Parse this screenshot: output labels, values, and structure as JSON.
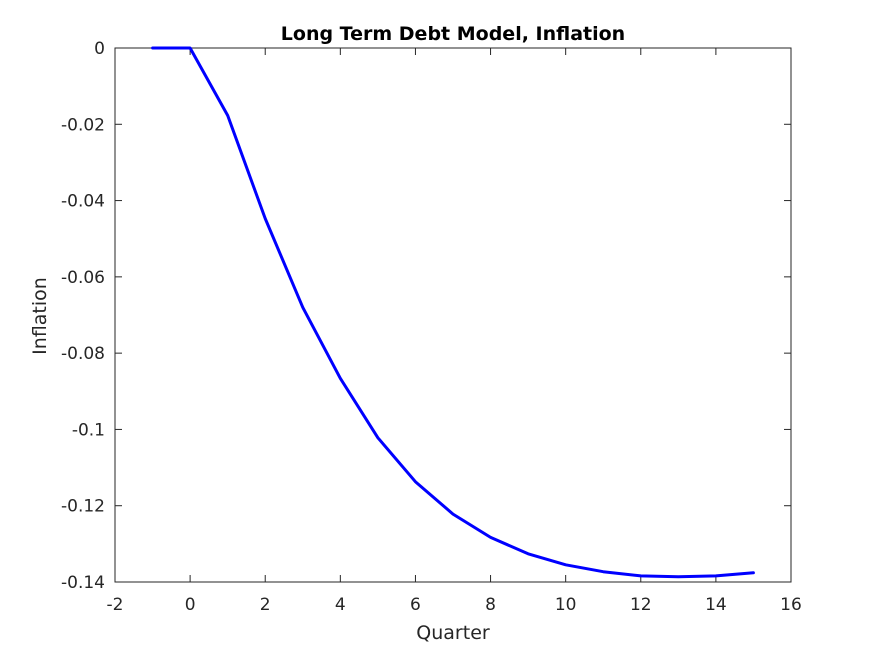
{
  "chart_data": {
    "type": "line",
    "title": "Long Term Debt Model, Inflation",
    "xlabel": "Quarter",
    "ylabel": "Inflation",
    "xlim": [
      -2,
      16
    ],
    "ylim": [
      -0.14,
      0
    ],
    "xticks": [
      -2,
      0,
      2,
      4,
      6,
      8,
      10,
      12,
      14,
      16
    ],
    "xtick_labels": [
      "-2",
      "0",
      "2",
      "4",
      "6",
      "8",
      "10",
      "12",
      "14",
      "16"
    ],
    "yticks": [
      0,
      -0.02,
      -0.04,
      -0.06,
      -0.08,
      -0.1,
      -0.12,
      -0.14
    ],
    "ytick_labels": [
      "0",
      "-0.02",
      "-0.04",
      "-0.06",
      "-0.08",
      "-0.1",
      "-0.12",
      "-0.14"
    ],
    "grid": false,
    "series": [
      {
        "color": "#0000ff",
        "x": [
          -1,
          0,
          1,
          2,
          3,
          4,
          5,
          6,
          7,
          8,
          9,
          10,
          11,
          12,
          13,
          14,
          15
        ],
        "y": [
          0,
          0,
          -0.0177,
          -0.0447,
          -0.068,
          -0.0866,
          -0.1022,
          -0.1137,
          -0.1222,
          -0.1283,
          -0.1326,
          -0.1355,
          -0.1373,
          -0.1384,
          -0.1386,
          -0.1384,
          -0.1376
        ]
      }
    ]
  }
}
